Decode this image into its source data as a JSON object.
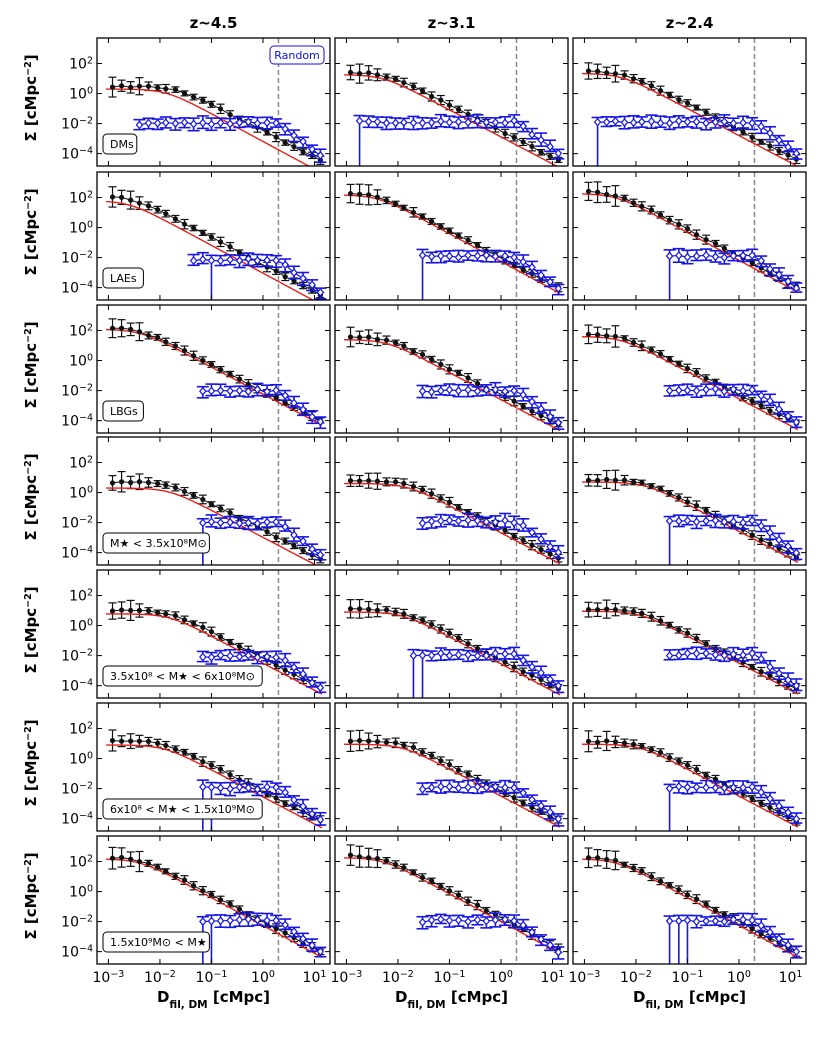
{
  "chart_data": {
    "type": "line",
    "layout": "7x3 grid of log-log panels",
    "columns": [
      "z~4.5",
      "z~3.1",
      "z~2.4"
    ],
    "rows": [
      "DMs",
      "LAEs",
      "LBGs",
      "M★ < 3.5x10⁸M⊙",
      "3.5x10⁸ < M★ < 6x10⁸M⊙",
      "6x10⁸ < M★ < 1.5x10⁹M⊙",
      "1.5x10⁹M⊙ < M★"
    ],
    "random_label": "Random",
    "ylabel": {
      "base": "Σ [cMpc",
      "sup": "−2",
      "close": "]"
    },
    "xlabel": {
      "base": "D",
      "sub": "fil, DM",
      "rest": " [cMpc]"
    },
    "xlim": [
      0.0006,
      20
    ],
    "ylim": [
      1.5e-05,
      5000
    ],
    "xscale": "log",
    "yscale": "log",
    "xticks": [
      {
        "value": 0.001,
        "mant": "10",
        "exp": "−3"
      },
      {
        "value": 0.01,
        "mant": "10",
        "exp": "−2"
      },
      {
        "value": 0.1,
        "mant": "10",
        "exp": "−1"
      },
      {
        "value": 1,
        "mant": "10",
        "exp": "0"
      },
      {
        "value": 10,
        "mant": "10",
        "exp": "1"
      }
    ],
    "yticks": [
      {
        "value": 100,
        "mant": "10",
        "exp": "2"
      },
      {
        "value": 1,
        "mant": "10",
        "exp": "0"
      },
      {
        "value": 0.01,
        "mant": "10",
        "exp": "−2"
      },
      {
        "value": 0.0001,
        "mant": "10",
        "exp": "−4"
      }
    ],
    "vline_x": 2.0,
    "x_grid_black": [
      0.0012,
      0.0018,
      0.0027,
      0.004,
      0.006,
      0.009,
      0.013,
      0.02,
      0.03,
      0.045,
      0.068,
      0.1,
      0.15,
      0.23,
      0.35,
      0.52,
      0.78,
      1.2,
      1.8,
      2.7,
      4.0,
      6.0,
      9.0,
      13.0
    ],
    "x_grid_blue": [
      0.0018,
      0.0027,
      0.004,
      0.006,
      0.009,
      0.013,
      0.02,
      0.03,
      0.045,
      0.068,
      0.1,
      0.15,
      0.23,
      0.35,
      0.52,
      0.78,
      1.2,
      1.8,
      2.7,
      4.0,
      6.0,
      9.0,
      13.0
    ],
    "series_legend": [
      "measured profile (black)",
      "model fit (red)",
      "random positions (blue)"
    ],
    "panels": [
      {
        "row": 0,
        "col": 0,
        "A": 3.0,
        "rc": 0.02,
        "p": 1.75,
        "Ar": 2.0,
        "rcr": 0.013,
        "pr": 1.85,
        "bx0": 0.004,
        "bl": 0.011,
        "by": 0.009,
        "ndown": []
      },
      {
        "row": 0,
        "col": 1,
        "A": 25.0,
        "rc": 0.006,
        "p": 1.75,
        "Ar": 18.0,
        "rcr": 0.005,
        "pr": 1.8,
        "bx0": 0.0018,
        "bl": 0.013,
        "by": 0.012,
        "ndown": [
          0
        ]
      },
      {
        "row": 0,
        "col": 2,
        "A": 30.0,
        "rc": 0.006,
        "p": 1.75,
        "Ar": 22.0,
        "rcr": 0.005,
        "pr": 1.8,
        "bx0": 0.0018,
        "bl": 0.013,
        "by": 0.012,
        "ndown": [
          0
        ]
      },
      {
        "row": 1,
        "col": 0,
        "A": 120.0,
        "rc": 0.003,
        "p": 1.8,
        "Ar": 60.0,
        "rcr": 0.0025,
        "pr": 1.85,
        "bx0": 0.045,
        "bl": 0.007,
        "by": 0.007,
        "ndown": [
          2
        ]
      },
      {
        "row": 1,
        "col": 1,
        "A": 200.0,
        "rc": 0.004,
        "p": 1.8,
        "Ar": 150.0,
        "rcr": 0.004,
        "pr": 1.85,
        "bx0": 0.03,
        "bl": 0.012,
        "by": 0.01,
        "ndown": [
          0
        ]
      },
      {
        "row": 1,
        "col": 2,
        "A": 250.0,
        "rc": 0.004,
        "p": 1.8,
        "Ar": 180.0,
        "rcr": 0.004,
        "pr": 1.85,
        "bx0": 0.045,
        "bl": 0.012,
        "by": 0.012,
        "ndown": [
          0
        ]
      },
      {
        "row": 2,
        "col": 0,
        "A": 150.0,
        "rc": 0.004,
        "p": 1.75,
        "Ar": 120.0,
        "rcr": 0.004,
        "pr": 1.8,
        "bx0": 0.068,
        "bl": 0.01,
        "by": 0.01,
        "ndown": []
      },
      {
        "row": 2,
        "col": 1,
        "A": 40.0,
        "rc": 0.006,
        "p": 1.75,
        "Ar": 25.0,
        "rcr": 0.006,
        "pr": 1.8,
        "bx0": 0.03,
        "bl": 0.01,
        "by": 0.01,
        "ndown": []
      },
      {
        "row": 2,
        "col": 2,
        "A": 60.0,
        "rc": 0.005,
        "p": 1.75,
        "Ar": 40.0,
        "rcr": 0.005,
        "pr": 1.8,
        "bx0": 0.045,
        "bl": 0.011,
        "by": 0.011,
        "ndown": []
      },
      {
        "row": 3,
        "col": 0,
        "A": 5.0,
        "rc": 0.015,
        "p": 1.75,
        "Ar": 2.0,
        "rcr": 0.015,
        "pr": 1.8,
        "bx0": 0.068,
        "bl": 0.01,
        "by": 0.008,
        "ndown": [
          0
        ]
      },
      {
        "row": 3,
        "col": 1,
        "A": 6.0,
        "rc": 0.015,
        "p": 1.75,
        "Ar": 4.0,
        "rcr": 0.015,
        "pr": 1.8,
        "bx0": 0.03,
        "bl": 0.012,
        "by": 0.01,
        "ndown": []
      },
      {
        "row": 3,
        "col": 2,
        "A": 7.0,
        "rc": 0.015,
        "p": 1.75,
        "Ar": 5.0,
        "rcr": 0.015,
        "pr": 1.8,
        "bx0": 0.045,
        "bl": 0.012,
        "by": 0.011,
        "ndown": [
          0
        ]
      },
      {
        "row": 4,
        "col": 0,
        "A": 10.0,
        "rc": 0.015,
        "p": 1.75,
        "Ar": 6.0,
        "rcr": 0.015,
        "pr": 1.8,
        "bx0": 0.068,
        "bl": 0.009,
        "by": 0.009,
        "ndown": []
      },
      {
        "row": 4,
        "col": 1,
        "A": 12.0,
        "rc": 0.012,
        "p": 1.75,
        "Ar": 8.0,
        "rcr": 0.012,
        "pr": 1.8,
        "bx0": 0.02,
        "bl": 0.012,
        "by": 0.01,
        "ndown": [
          0,
          1
        ]
      },
      {
        "row": 4,
        "col": 2,
        "A": 12.0,
        "rc": 0.012,
        "p": 1.75,
        "Ar": 9.0,
        "rcr": 0.012,
        "pr": 1.8,
        "bx0": 0.045,
        "bl": 0.012,
        "by": 0.011,
        "ndown": []
      },
      {
        "row": 5,
        "col": 0,
        "A": 15.0,
        "rc": 0.012,
        "p": 1.75,
        "Ar": 8.0,
        "rcr": 0.012,
        "pr": 1.8,
        "bx0": 0.068,
        "bl": 0.011,
        "by": 0.01,
        "ndown": [
          0,
          1
        ]
      },
      {
        "row": 5,
        "col": 1,
        "A": 16.0,
        "rc": 0.012,
        "p": 1.75,
        "Ar": 9.0,
        "rcr": 0.012,
        "pr": 1.8,
        "bx0": 0.03,
        "bl": 0.012,
        "by": 0.01,
        "ndown": []
      },
      {
        "row": 5,
        "col": 2,
        "A": 14.0,
        "rc": 0.012,
        "p": 1.75,
        "Ar": 9.0,
        "rcr": 0.012,
        "pr": 1.8,
        "bx0": 0.045,
        "bl": 0.012,
        "by": 0.011,
        "ndown": [
          0
        ]
      },
      {
        "row": 6,
        "col": 0,
        "A": 200.0,
        "rc": 0.004,
        "p": 1.8,
        "Ar": 150.0,
        "rcr": 0.004,
        "pr": 1.85,
        "bx0": 0.068,
        "bl": 0.012,
        "by": 0.01,
        "ndown": [
          0,
          1
        ]
      },
      {
        "row": 6,
        "col": 1,
        "A": 250.0,
        "rc": 0.005,
        "p": 1.8,
        "Ar": 180.0,
        "rcr": 0.005,
        "pr": 1.85,
        "bx0": 0.03,
        "bl": 0.012,
        "by": 0.01,
        "ndown": []
      },
      {
        "row": 6,
        "col": 2,
        "A": 200.0,
        "rc": 0.004,
        "p": 1.8,
        "Ar": 150.0,
        "rcr": 0.004,
        "pr": 1.85,
        "bx0": 0.045,
        "bl": 0.012,
        "by": 0.011,
        "ndown": [
          0,
          1,
          2
        ]
      }
    ]
  },
  "colors": {
    "black": "#111111",
    "red": "#e8201a",
    "blue": "#1515e6",
    "vline": "#8a8a8a",
    "axes": "#000000"
  }
}
